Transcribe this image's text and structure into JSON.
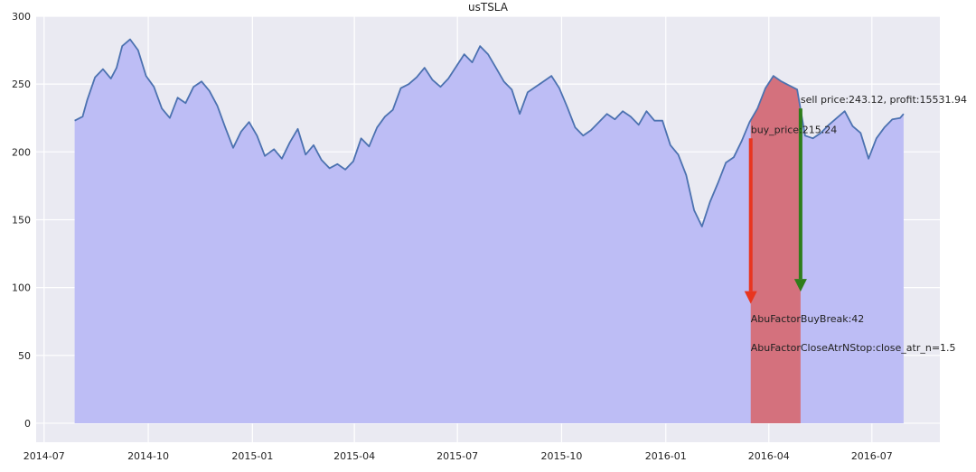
{
  "chart_data": {
    "type": "area",
    "title": "usTSLA",
    "xlabel": "",
    "ylabel": "",
    "grid": true,
    "x_ticks": [
      "2014-07",
      "2014-10",
      "2015-01",
      "2015-04",
      "2015-07",
      "2015-10",
      "2016-01",
      "2016-04",
      "2016-07"
    ],
    "y_ticks": [
      0,
      50,
      100,
      150,
      200,
      250,
      300
    ],
    "xlim": [
      "2014-06-24",
      "2016-08-30"
    ],
    "ylim": [
      -14,
      300
    ],
    "series": [
      {
        "x": [
          "2014-07-28",
          "2014-08-04",
          "2014-08-08",
          "2014-08-15",
          "2014-08-22",
          "2014-08-29",
          "2014-09-03",
          "2014-09-08",
          "2014-09-15",
          "2014-09-22",
          "2014-09-29",
          "2014-10-06",
          "2014-10-13",
          "2014-10-20",
          "2014-10-27",
          "2014-11-03",
          "2014-11-10",
          "2014-11-17",
          "2014-11-24",
          "2014-12-01",
          "2014-12-08",
          "2014-12-15",
          "2014-12-22",
          "2014-12-29",
          "2015-01-05",
          "2015-01-12",
          "2015-01-20",
          "2015-01-27",
          "2015-02-03",
          "2015-02-10",
          "2015-02-17",
          "2015-02-24",
          "2015-03-03",
          "2015-03-10",
          "2015-03-17",
          "2015-03-24",
          "2015-03-31",
          "2015-04-07",
          "2015-04-14",
          "2015-04-21",
          "2015-04-28",
          "2015-05-05",
          "2015-05-12",
          "2015-05-19",
          "2015-05-26",
          "2015-06-02",
          "2015-06-09",
          "2015-06-16",
          "2015-06-23",
          "2015-06-30",
          "2015-07-07",
          "2015-07-14",
          "2015-07-21",
          "2015-07-28",
          "2015-08-04",
          "2015-08-11",
          "2015-08-18",
          "2015-08-25",
          "2015-09-01",
          "2015-09-08",
          "2015-09-15",
          "2015-09-22",
          "2015-09-29",
          "2015-10-06",
          "2015-10-13",
          "2015-10-20",
          "2015-10-27",
          "2015-11-03",
          "2015-11-10",
          "2015-11-17",
          "2015-11-24",
          "2015-12-01",
          "2015-12-08",
          "2015-12-15",
          "2015-12-22",
          "2015-12-29",
          "2016-01-05",
          "2016-01-12",
          "2016-01-19",
          "2016-01-26",
          "2016-02-02",
          "2016-02-09",
          "2016-02-16",
          "2016-02-23",
          "2016-03-01",
          "2016-03-08",
          "2016-03-15",
          "2016-03-22",
          "2016-03-29",
          "2016-04-05",
          "2016-04-12",
          "2016-04-19",
          "2016-04-26",
          "2016-05-03",
          "2016-05-10",
          "2016-05-17",
          "2016-05-24",
          "2016-05-31",
          "2016-06-07",
          "2016-06-14",
          "2016-06-21",
          "2016-06-28",
          "2016-07-05",
          "2016-07-12",
          "2016-07-19",
          "2016-07-26",
          "2016-07-29"
        ],
        "values": [
          223,
          226,
          238,
          255,
          261,
          254,
          262,
          278,
          283,
          275,
          256,
          248,
          232,
          225,
          240,
          236,
          248,
          252,
          245,
          234,
          218,
          203,
          215,
          222,
          212,
          197,
          202,
          195,
          207,
          217,
          198,
          205,
          194,
          188,
          191,
          187,
          193,
          210,
          204,
          218,
          226,
          231,
          247,
          250,
          255,
          262,
          253,
          248,
          254,
          263,
          272,
          266,
          278,
          272,
          262,
          252,
          246,
          228,
          244,
          248,
          252,
          256,
          247,
          233,
          218,
          212,
          216,
          222,
          228,
          224,
          230,
          226,
          220,
          230,
          223,
          223,
          205,
          198,
          183,
          157,
          145,
          163,
          177,
          192,
          196,
          208,
          222,
          232,
          247,
          256,
          252,
          249,
          246,
          212,
          210,
          214,
          220,
          225,
          230,
          219,
          214,
          195,
          210,
          218,
          224,
          225,
          228
        ]
      }
    ],
    "annotations": {
      "buy_label": "buy_price:215.24",
      "sell_label": "sell price:243.12, profit:15531.94",
      "buy_factor": "AbuFactorBuyBreak:42",
      "sell_factor": "AbuFactorCloseAtrNStop:close_atr_n=1.5",
      "buy_date": "2016-03-16",
      "sell_date": "2016-04-29",
      "buy_arrow_top": 210,
      "buy_arrow_bottom": 88,
      "sell_arrow_top": 232,
      "sell_arrow_bottom": 97,
      "buy_factor_y": 77,
      "sell_factor_y": 56
    },
    "colors": {
      "background": "#EAEAF2",
      "grid": "#FFFFFF",
      "area_fill": "#BDBDF5",
      "line": "#4C72B0",
      "hold_fill": "#D4717D",
      "buy_arrow": "#E8351F",
      "sell_arrow": "#2E7D1A"
    }
  }
}
